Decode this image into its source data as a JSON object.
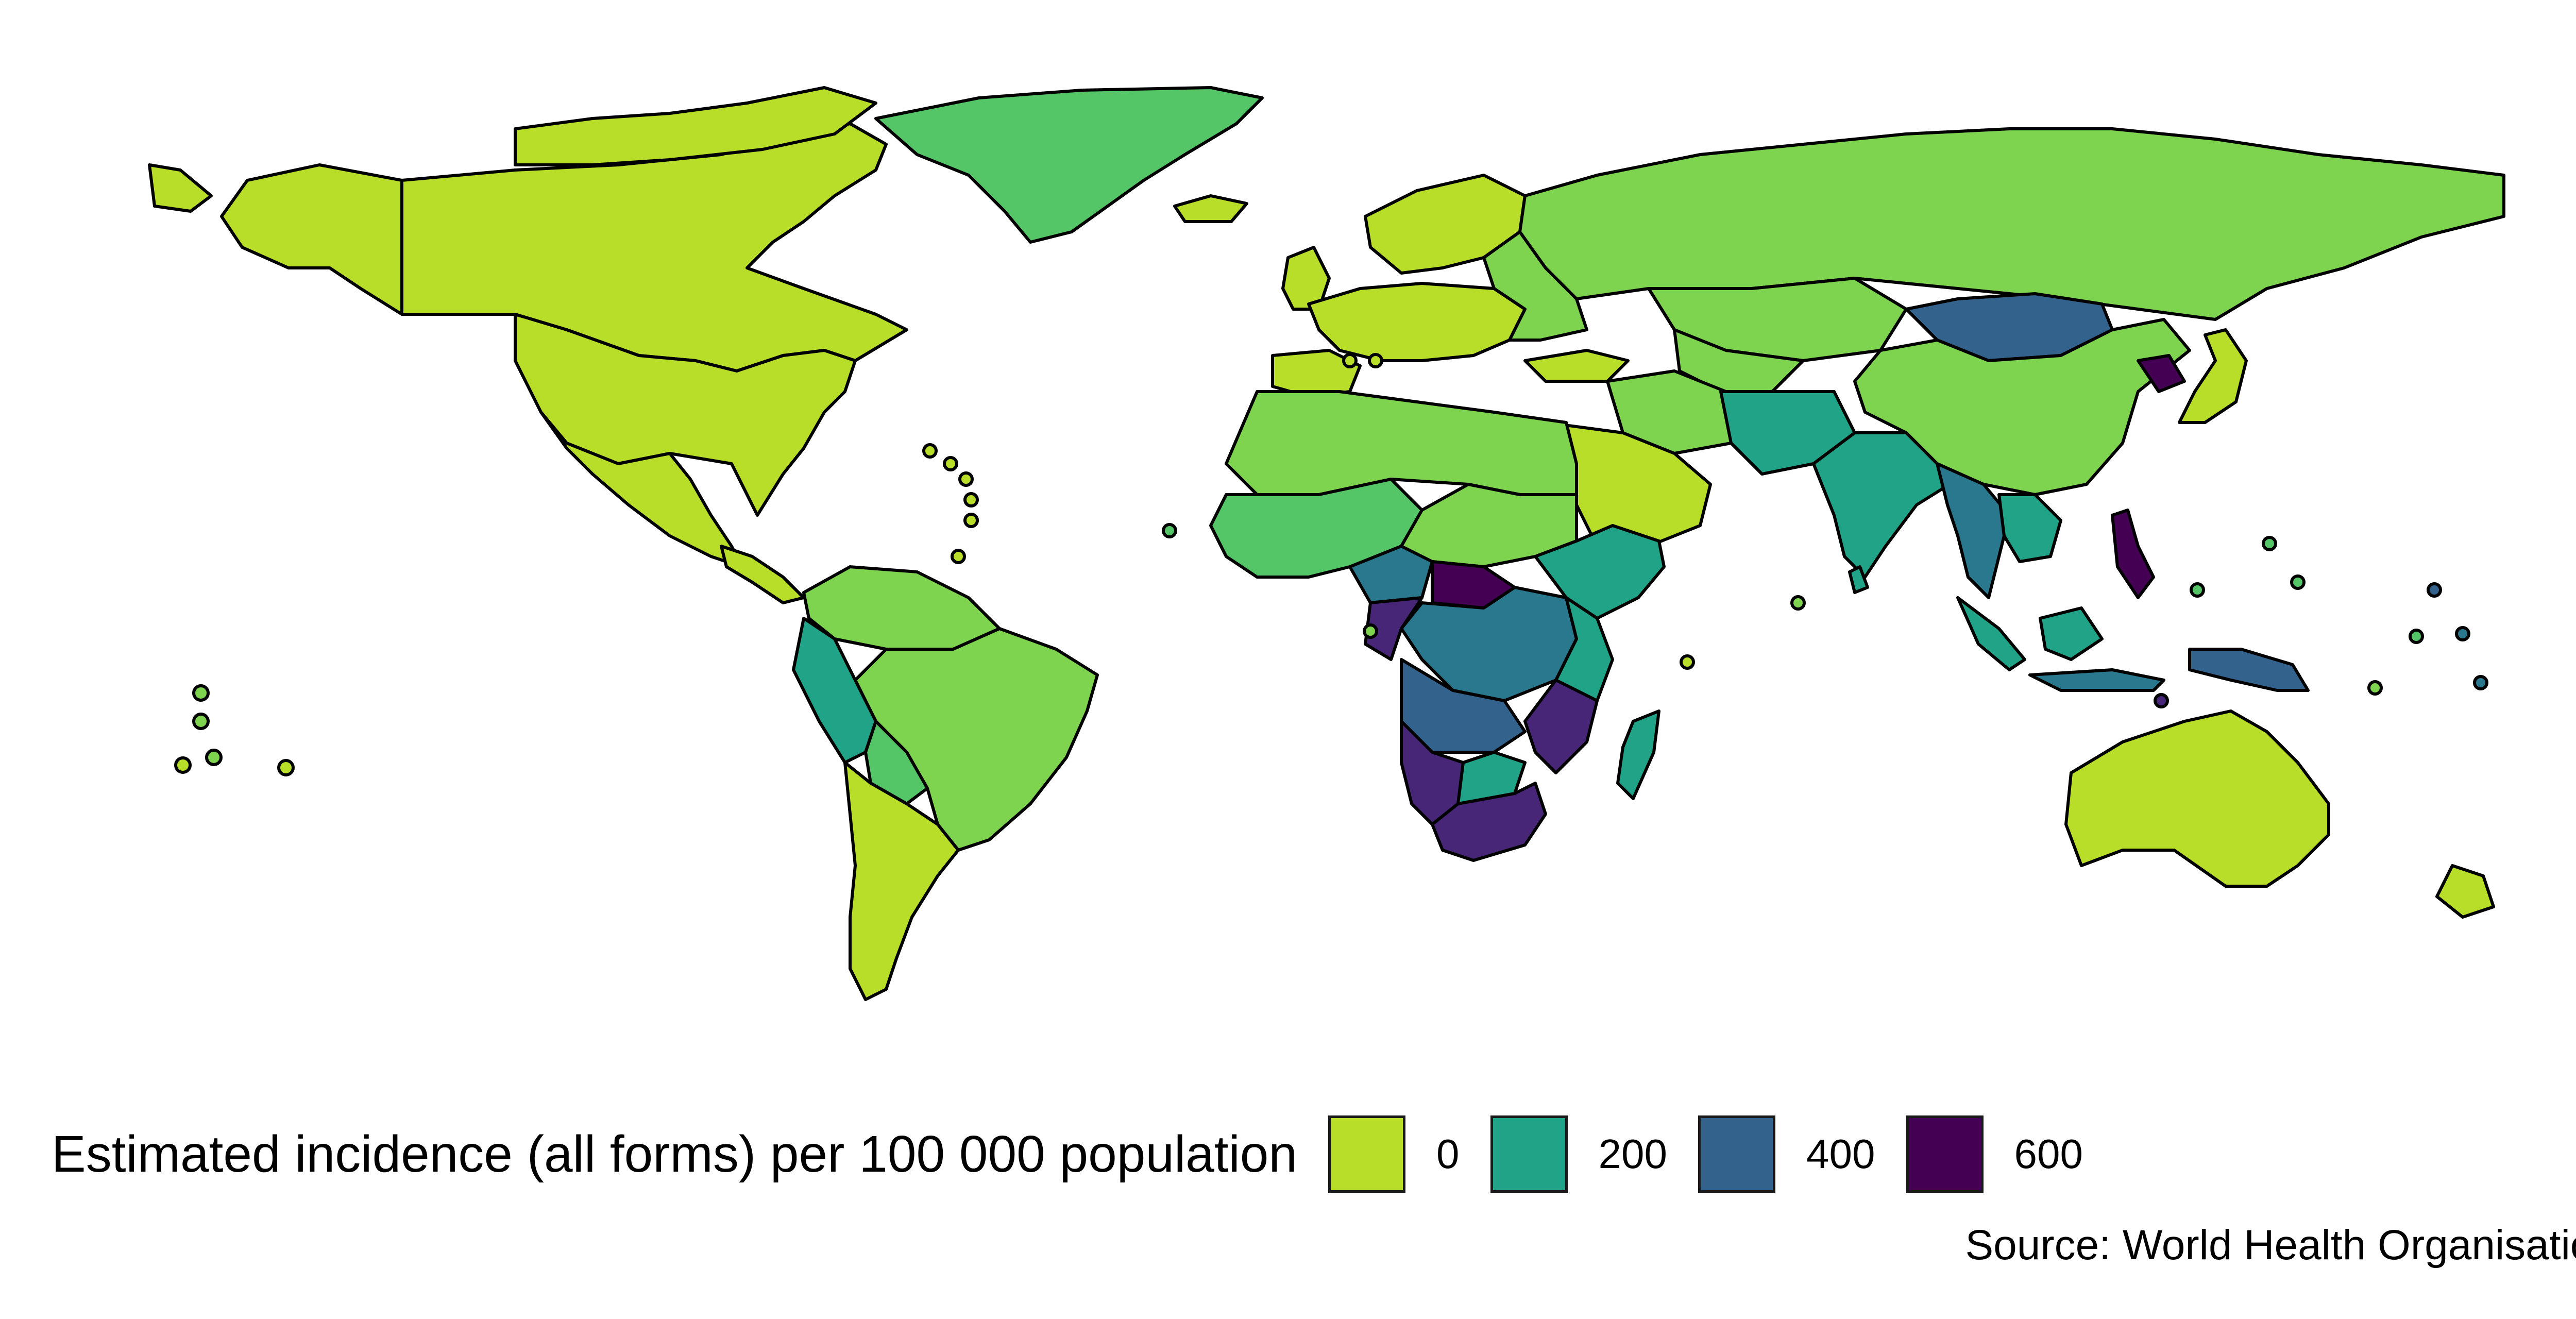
{
  "legend": {
    "title": "Estimated incidence (all forms) per 100 000 population",
    "items": [
      {
        "label": "0",
        "value": 0,
        "color": "#b8de29"
      },
      {
        "label": "200",
        "value": 200,
        "color": "#20a386"
      },
      {
        "label": "400",
        "value": 400,
        "color": "#33638d"
      },
      {
        "label": "600",
        "value": 600,
        "color": "#440154"
      }
    ]
  },
  "source": "Source: World Health Organisation",
  "palette": {
    "very_low": "#b8de29",
    "low": "#7ed34f",
    "low_mid": "#55c667",
    "mid": "#20a386",
    "mid_high": "#2a788e",
    "high": "#33638d",
    "very_high": "#482677",
    "extreme": "#440154",
    "border": "#000000",
    "background": "#ffffff"
  }
}
